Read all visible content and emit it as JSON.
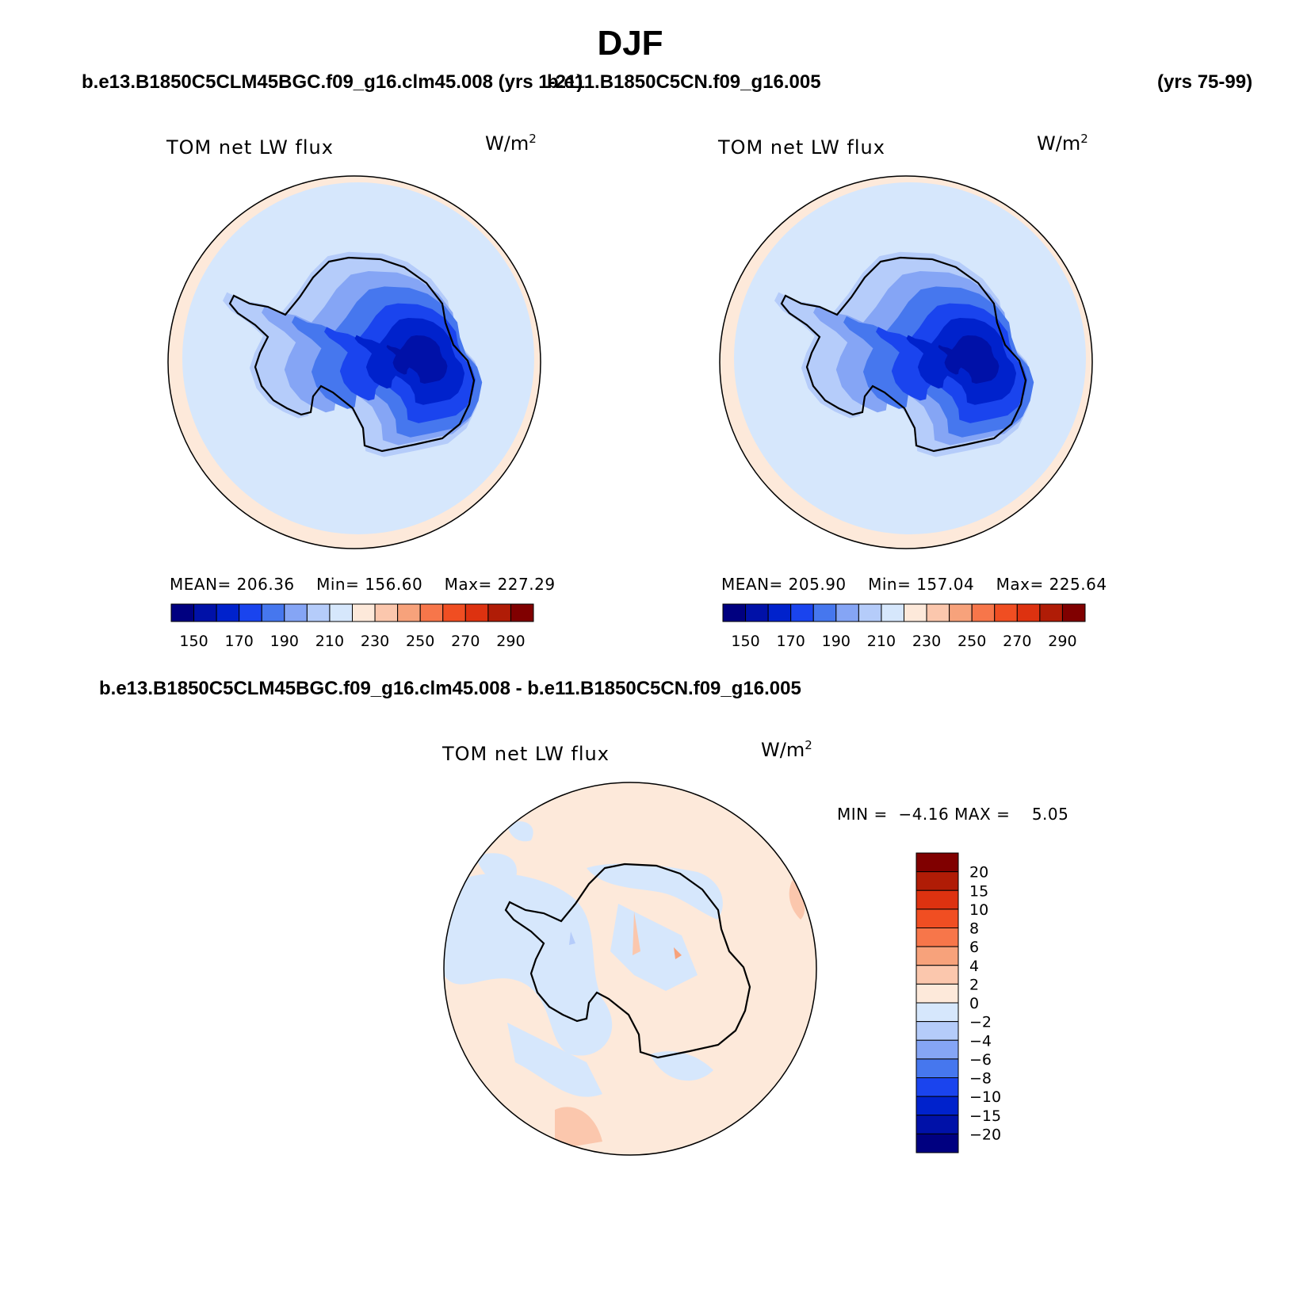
{
  "title": "DJF",
  "subtitles": {
    "left_case": "b.e13.B1850C5CLM45BGC.f09_g16.clm45.008 (yrs 1-21)",
    "right_case": "b.e11.B1850C5CN.f09_g16.005",
    "right_years": "(yrs 75-99)",
    "diff_case": "b.e13.B1850C5CLM45BGC.f09_g16.clm45.008 - b.e11.B1850C5CN.f09_g16.005"
  },
  "panels": [
    {
      "variable": "TOM net LW flux",
      "units": "W/m",
      "units_sup": "2",
      "stats": {
        "mean_label": "MEAN=",
        "mean": "206.36",
        "min_label": "Min=",
        "min": "156.60",
        "max_label": "Max=",
        "max": "227.29"
      }
    },
    {
      "variable": "TOM net LW flux",
      "units": "W/m",
      "units_sup": "2",
      "stats": {
        "mean_label": "MEAN=",
        "mean": "205.90",
        "min_label": "Min=",
        "min": "157.04",
        "max_label": "Max=",
        "max": "225.64"
      }
    },
    {
      "variable": "TOM net LW flux",
      "units": "W/m",
      "units_sup": "2",
      "stats": {
        "min_label": "MIN =",
        "min": "−4.16",
        "max_label": "MAX =",
        "max": "5.05"
      }
    }
  ],
  "colorbars": {
    "absolute": {
      "colors": [
        "#000080",
        "#0011a8",
        "#0022cc",
        "#1a44ee",
        "#4677ee",
        "#85a5f5",
        "#b5ccfa",
        "#d6e7fc",
        "#fde9da",
        "#fbc7ad",
        "#f7a27b",
        "#f7764a",
        "#f04e22",
        "#dd3210",
        "#b01c06",
        "#800000"
      ],
      "labels": [
        "150",
        "170",
        "190",
        "210",
        "230",
        "250",
        "270",
        "290"
      ]
    },
    "difference": {
      "colors": [
        "#800000",
        "#b01c06",
        "#dd3210",
        "#f04e22",
        "#f7764a",
        "#f7a27b",
        "#fbc7ad",
        "#fde9da",
        "#d6e7fc",
        "#b5ccfa",
        "#85a5f5",
        "#4677ee",
        "#1a44ee",
        "#0022cc",
        "#0011a8",
        "#000080"
      ],
      "labels": [
        "20",
        "15",
        "10",
        "8",
        "6",
        "4",
        "2",
        "0",
        "−2",
        "−4",
        "−6",
        "−8",
        "−10",
        "−15",
        "−20"
      ]
    }
  },
  "map_colors": {
    "ocean": "#d6e7fc",
    "warm_ring": "#fde9da",
    "level_1": "#b5ccfa",
    "level_2": "#85a5f5",
    "level_3": "#4677ee",
    "level_4": "#1a44ee",
    "level_5": "#0022cc",
    "level_6": "#0011a8",
    "diff_pos": "#fde9da",
    "diff_pos2": "#fbc7ad",
    "diff_neg": "#d6e7fc",
    "diff_neg2": "#b5ccfa"
  }
}
